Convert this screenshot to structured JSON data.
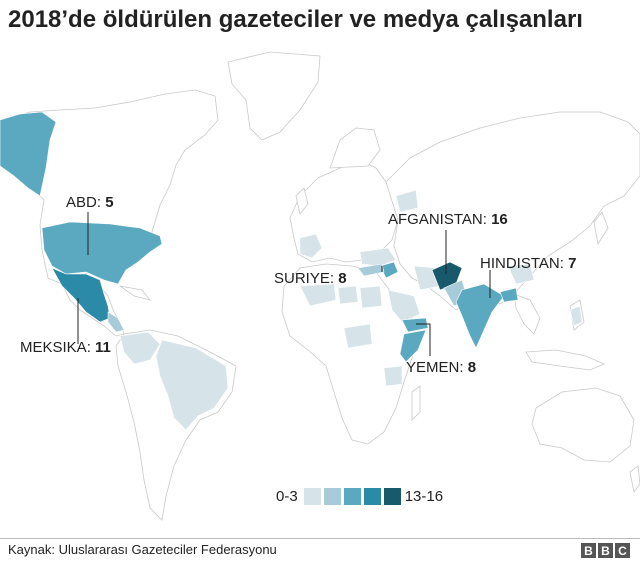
{
  "title": "2018’de öldürülen gazeteciler ve medya çalışanları",
  "colors": {
    "scale": [
      "#d6e3e9",
      "#a7cbd8",
      "#5aa9c0",
      "#2a8aa8",
      "#185a6c"
    ],
    "land": "#ffffff",
    "border": "#c9c9c9"
  },
  "legend": {
    "low": "0-3",
    "high": "13-16"
  },
  "labels": [
    {
      "country": "ABD",
      "value": "5"
    },
    {
      "country": "MEKSIKA",
      "value": "11"
    },
    {
      "country": "SURIYE",
      "value": "8"
    },
    {
      "country": "AFGANISTAN",
      "value": "16"
    },
    {
      "country": "HINDISTAN",
      "value": "7"
    },
    {
      "country": "YEMEN",
      "value": "8"
    }
  ],
  "source": "Kaynak: Uluslararası Gazeteciler Federasyonu",
  "logo": [
    "B",
    "B",
    "C"
  ]
}
